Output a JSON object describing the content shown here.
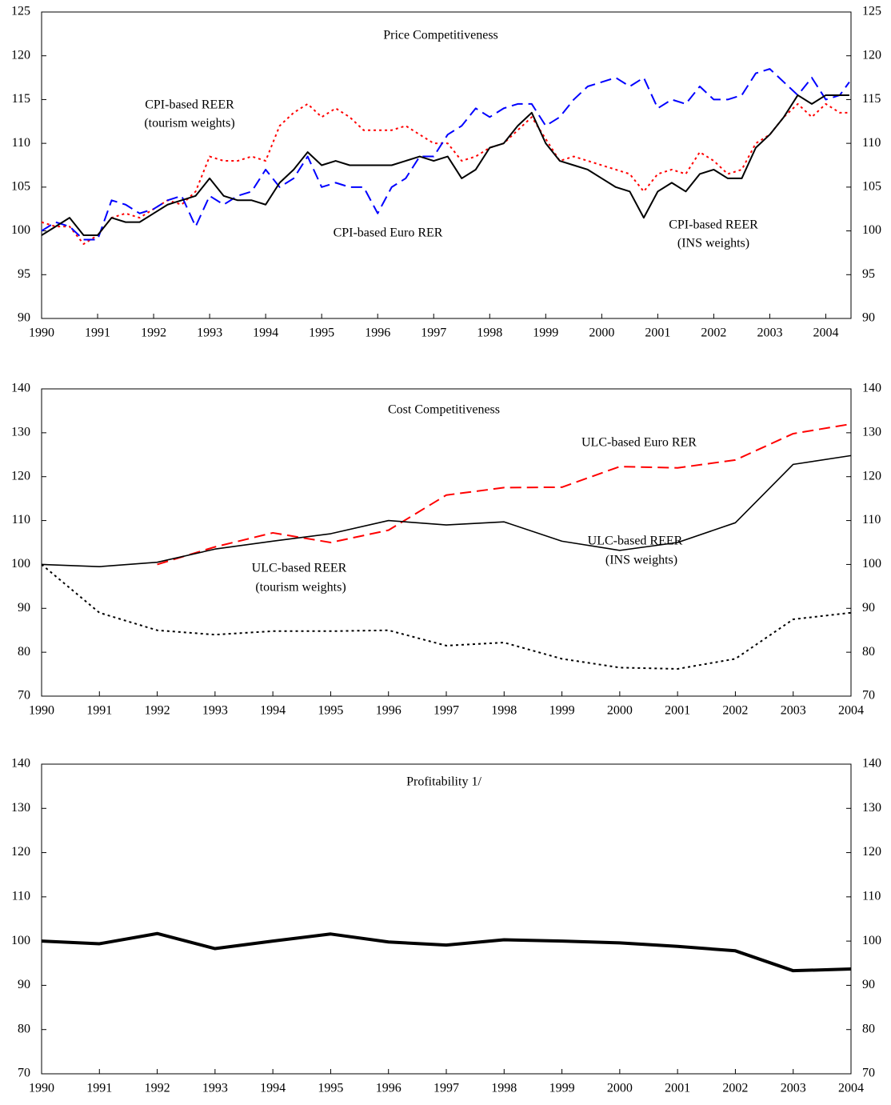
{
  "chart_data": [
    {
      "type": "line",
      "title": "Price Competitiveness",
      "annotations": [
        "CPI-based REER",
        "(tourism weights)",
        "CPI-based Euro RER",
        "CPI-based REER",
        "(INS weights)"
      ],
      "x": [
        1990,
        1990.25,
        1990.5,
        1990.75,
        1991,
        1991.25,
        1991.5,
        1991.75,
        1992,
        1992.25,
        1992.5,
        1992.75,
        1993,
        1993.25,
        1993.5,
        1993.75,
        1994,
        1994.25,
        1994.5,
        1994.75,
        1995,
        1995.25,
        1995.5,
        1995.75,
        1996,
        1996.25,
        1996.5,
        1996.75,
        1997,
        1997.25,
        1997.5,
        1997.75,
        1998,
        1998.25,
        1998.5,
        1998.75,
        1999,
        1999.25,
        1999.5,
        1999.75,
        2000,
        2000.25,
        2000.5,
        2000.75,
        2001,
        2001.25,
        2001.5,
        2001.75,
        2002,
        2002.25,
        2002.5,
        2002.75,
        2003,
        2003.25,
        2003.5,
        2003.75,
        2004,
        2004.25,
        2004.42
      ],
      "xlim": [
        1990,
        2004.45
      ],
      "xticks": [
        1990,
        1991,
        1992,
        1993,
        1994,
        1995,
        1996,
        1997,
        1998,
        1999,
        2000,
        2001,
        2002,
        2003,
        2004
      ],
      "ylim": [
        90,
        125
      ],
      "yticks": [
        90,
        95,
        100,
        105,
        110,
        115,
        120,
        125
      ],
      "series": [
        {
          "name": "CPI-based REER (tourism weights)",
          "color": "#ff0000",
          "dash": "dotted",
          "width": 2,
          "values": [
            101,
            100.5,
            100.5,
            98.5,
            99.5,
            101.5,
            102,
            101.5,
            102.5,
            103.5,
            103,
            104.5,
            108.5,
            108,
            108,
            108.5,
            108,
            112,
            113.5,
            114.5,
            113,
            114,
            113,
            111.5,
            111.5,
            111.5,
            112,
            111,
            110,
            110,
            108,
            108.5,
            109.5,
            110,
            111.5,
            113,
            110.5,
            108,
            108.5,
            108,
            107.5,
            107,
            106.5,
            104.5,
            106.5,
            107,
            106.5,
            109,
            108,
            106.5,
            107,
            110,
            111,
            113,
            114.5,
            113,
            114.5,
            113.5,
            113.5
          ]
        },
        {
          "name": "CPI-based Euro RER",
          "color": "#0000ff",
          "dash": "dashed",
          "width": 2,
          "values": [
            100,
            101,
            100.5,
            99,
            99,
            103.5,
            103,
            102,
            102.5,
            103.5,
            104,
            100.5,
            104,
            103,
            104,
            104.5,
            107,
            105,
            106,
            108.5,
            105,
            105.5,
            105,
            105,
            102,
            105,
            106,
            108.5,
            108.5,
            111,
            112,
            114,
            113,
            114,
            114.5,
            114.5,
            112,
            113,
            115,
            116.5,
            117,
            117.5,
            116.5,
            117.5,
            114,
            115,
            114.5,
            116.5,
            115,
            115,
            115.5,
            118,
            118.5,
            117,
            115.5,
            117.5,
            115,
            115.5,
            117
          ]
        },
        {
          "name": "CPI-based REER (INS weights)",
          "color": "#000000",
          "dash": "solid",
          "width": 2,
          "values": [
            99.5,
            100.5,
            101.5,
            99.5,
            99.5,
            101.5,
            101,
            101,
            102,
            103,
            103.5,
            104,
            106,
            104,
            103.5,
            103.5,
            103,
            105.5,
            107,
            109,
            107.5,
            108,
            107.5,
            107.5,
            107.5,
            107.5,
            108,
            108.5,
            108,
            108.5,
            106,
            107,
            109.5,
            110,
            112,
            113.5,
            110,
            108,
            107.5,
            107,
            106,
            105,
            104.5,
            101.5,
            104.5,
            105.5,
            104.5,
            106.5,
            107,
            106,
            106,
            109.5,
            111,
            113,
            115.5,
            114.5,
            115.5,
            115.5,
            115.5
          ]
        }
      ]
    },
    {
      "type": "line",
      "title": "Cost Competitiveness",
      "annotations": [
        "ULC-based Euro RER",
        "ULC-based REER",
        "(INS weights)",
        "ULC-based REER",
        "(tourism weights)"
      ],
      "x": [
        1990,
        1991,
        1992,
        1993,
        1994,
        1995,
        1996,
        1997,
        1998,
        1999,
        2000,
        2001,
        2002,
        2003,
        2004
      ],
      "xlim": [
        1990,
        2004
      ],
      "xticks": [
        1990,
        1991,
        1992,
        1993,
        1994,
        1995,
        1996,
        1997,
        1998,
        1999,
        2000,
        2001,
        2002,
        2003,
        2004
      ],
      "ylim": [
        70,
        140
      ],
      "yticks": [
        70,
        80,
        90,
        100,
        110,
        120,
        130,
        140
      ],
      "series": [
        {
          "name": "ULC-based Euro RER",
          "color": "#ff0000",
          "dash": "dashed",
          "width": 2,
          "values": [
            null,
            null,
            100,
            104,
            107.2,
            105,
            107.8,
            115.8,
            117.5,
            117.6,
            122.3,
            122,
            123.8,
            129.8,
            132
          ]
        },
        {
          "name": "ULC-based REER (INS weights)",
          "color": "#000000",
          "dash": "solid",
          "width": 1.6,
          "values": [
            100,
            99.5,
            100.5,
            103.5,
            105.3,
            107,
            110,
            109,
            109.7,
            105.3,
            103.2,
            105,
            109.5,
            122.8,
            124.8
          ]
        },
        {
          "name": "ULC-based REER (tourism weights)",
          "color": "#000000",
          "dash": "dotted",
          "width": 2,
          "values": [
            100,
            89,
            85,
            84,
            84.8,
            84.8,
            85,
            81.5,
            82.2,
            78.5,
            76.5,
            76.2,
            78.5,
            87.5,
            89
          ]
        }
      ]
    },
    {
      "type": "line",
      "title": "Profitability 1/",
      "x": [
        1990,
        1991,
        1992,
        1993,
        1994,
        1995,
        1996,
        1997,
        1998,
        1999,
        2000,
        2001,
        2002,
        2003,
        2004
      ],
      "xlim": [
        1990,
        2004
      ],
      "xticks": [
        1990,
        1991,
        1992,
        1993,
        1994,
        1995,
        1996,
        1997,
        1998,
        1999,
        2000,
        2001,
        2002,
        2003,
        2004
      ],
      "ylim": [
        70,
        140
      ],
      "yticks": [
        70,
        80,
        90,
        100,
        110,
        120,
        130,
        140
      ],
      "series": [
        {
          "name": "Profitability",
          "color": "#000000",
          "dash": "solid",
          "width": 4,
          "values": [
            100,
            99.4,
            101.7,
            98.3,
            100,
            101.6,
            99.8,
            99.1,
            100.3,
            100,
            99.6,
            98.8,
            97.8,
            93.3,
            93.7
          ]
        }
      ]
    }
  ]
}
